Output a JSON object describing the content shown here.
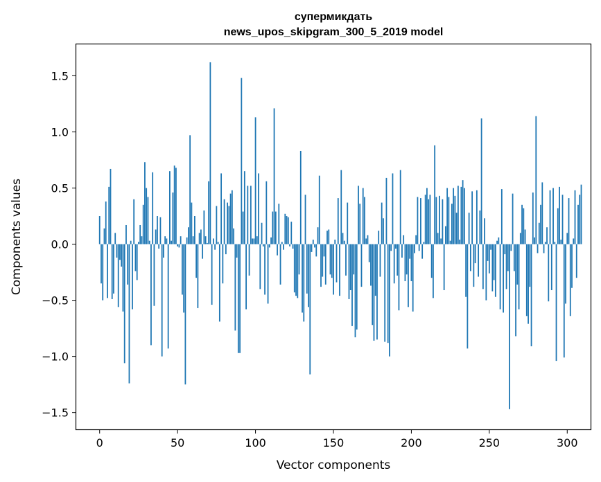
{
  "chart_data": {
    "type": "bar",
    "title_line1": "супермикдать",
    "title_line2": "news_upos_skipgram_300_5_2019 model",
    "xlabel": "Vector components",
    "ylabel": "Components values",
    "xlim": [
      -15,
      315
    ],
    "ylim": [
      -1.65,
      1.78
    ],
    "xticks": [
      0,
      50,
      100,
      150,
      200,
      250,
      300
    ],
    "yticks": [
      -1.5,
      -1.0,
      -0.5,
      0.0,
      0.5,
      1.0,
      1.5
    ],
    "ytick_labels": [
      "−1.5",
      "−1.0",
      "−0.5",
      "0.0",
      "0.5",
      "1.0",
      "1.5"
    ],
    "bar_color": "#1f77b4",
    "values": [
      0.25,
      -0.35,
      -0.5,
      0.14,
      0.38,
      -0.48,
      0.51,
      0.67,
      -0.49,
      -0.44,
      0.1,
      -0.12,
      -0.56,
      -0.14,
      -0.2,
      -0.6,
      -1.06,
      0.17,
      -0.36,
      -1.24,
      0.03,
      -0.58,
      0.4,
      -0.24,
      -0.32,
      0.02,
      0.17,
      0.07,
      0.35,
      0.73,
      0.5,
      0.42,
      0.03,
      -0.9,
      0.64,
      -0.55,
      0.13,
      0.25,
      -0.04,
      0.24,
      -1.0,
      -0.12,
      0.07,
      0.05,
      -0.93,
      0.65,
      0.03,
      0.46,
      0.7,
      0.68,
      -0.02,
      -0.03,
      0.07,
      -0.45,
      -0.61,
      -1.25,
      0.06,
      0.15,
      0.97,
      0.37,
      0.07,
      0.25,
      -0.3,
      -0.57,
      0.1,
      0.13,
      -0.13,
      0.3,
      0.07,
      0.01,
      0.56,
      1.62,
      -0.54,
      0.05,
      -0.05,
      0.34,
      0.02,
      -0.69,
      0.63,
      -0.35,
      0.4,
      -0.09,
      0.37,
      0.34,
      0.45,
      0.48,
      0.14,
      -0.77,
      -0.12,
      -0.97,
      -0.97,
      1.48,
      0.29,
      0.65,
      -0.58,
      0.52,
      -0.28,
      0.52,
      0.05,
      0.05,
      1.13,
      0.07,
      0.63,
      -0.4,
      0.19,
      -0.02,
      -0.45,
      0.56,
      -0.53,
      -0.03,
      0.06,
      0.29,
      1.21,
      0.29,
      -0.1,
      0.36,
      -0.36,
      0.02,
      -0.05,
      0.27,
      0.25,
      0.24,
      -0.02,
      0.2,
      -0.04,
      -0.43,
      -0.46,
      -0.48,
      -0.27,
      0.83,
      -0.61,
      -0.69,
      0.44,
      -0.44,
      -0.56,
      -1.16,
      -0.07,
      0.04,
      -0.03,
      -0.11,
      0.15,
      0.61,
      -0.38,
      -0.29,
      -0.11,
      -0.36,
      0.12,
      0.13,
      -0.27,
      -0.3,
      -0.45,
      0.04,
      -0.34,
      0.41,
      -0.46,
      0.66,
      0.1,
      0.03,
      -0.28,
      0.37,
      -0.49,
      -0.41,
      -0.73,
      -0.27,
      -0.83,
      -0.76,
      0.52,
      0.36,
      -0.38,
      0.5,
      0.42,
      0.05,
      0.08,
      -0.16,
      -0.37,
      -0.72,
      -0.86,
      -0.46,
      -0.85,
      0.12,
      -0.29,
      0.37,
      0.23,
      -0.87,
      0.59,
      -0.88,
      -1.0,
      -0.06,
      0.63,
      -0.35,
      -0.04,
      -0.28,
      -0.59,
      0.66,
      -0.12,
      0.08,
      -0.33,
      -0.27,
      -0.56,
      -0.13,
      -0.33,
      -0.6,
      -0.08,
      0.08,
      0.42,
      -0.06,
      0.41,
      -0.13,
      0.02,
      0.44,
      0.5,
      0.4,
      0.44,
      -0.3,
      -0.48,
      0.88,
      0.42,
      0.1,
      0.43,
      0.05,
      0.4,
      -0.41,
      0.16,
      0.5,
      0.42,
      0.03,
      0.36,
      0.5,
      0.43,
      0.28,
      0.52,
      0.04,
      0.51,
      0.57,
      0.5,
      -0.47,
      -0.93,
      0.28,
      -0.24,
      0.47,
      -0.38,
      -0.17,
      0.48,
      -0.29,
      0.3,
      1.12,
      -0.4,
      0.23,
      -0.5,
      -0.15,
      -0.26,
      -0.05,
      -0.42,
      -0.32,
      -0.47,
      0.03,
      0.06,
      -0.58,
      0.49,
      -0.61,
      -0.09,
      -0.4,
      -0.24,
      -1.47,
      -0.06,
      0.45,
      -0.24,
      -0.82,
      -0.36,
      -0.58,
      0.1,
      0.35,
      0.32,
      0.13,
      -0.64,
      -0.71,
      -0.38,
      -0.91,
      0.46,
      0.06,
      1.14,
      -0.08,
      0.19,
      0.35,
      0.55,
      -0.08,
      0.02,
      0.15,
      -0.51,
      0.48,
      -0.41,
      0.5,
      0.02,
      -1.04,
      0.32,
      0.51,
      0.04,
      0.44,
      -1.01,
      -0.53,
      0.1,
      0.41,
      -0.64,
      -0.39,
      0.05,
      0.48,
      -0.3,
      0.35,
      0.44,
      0.53
    ]
  }
}
